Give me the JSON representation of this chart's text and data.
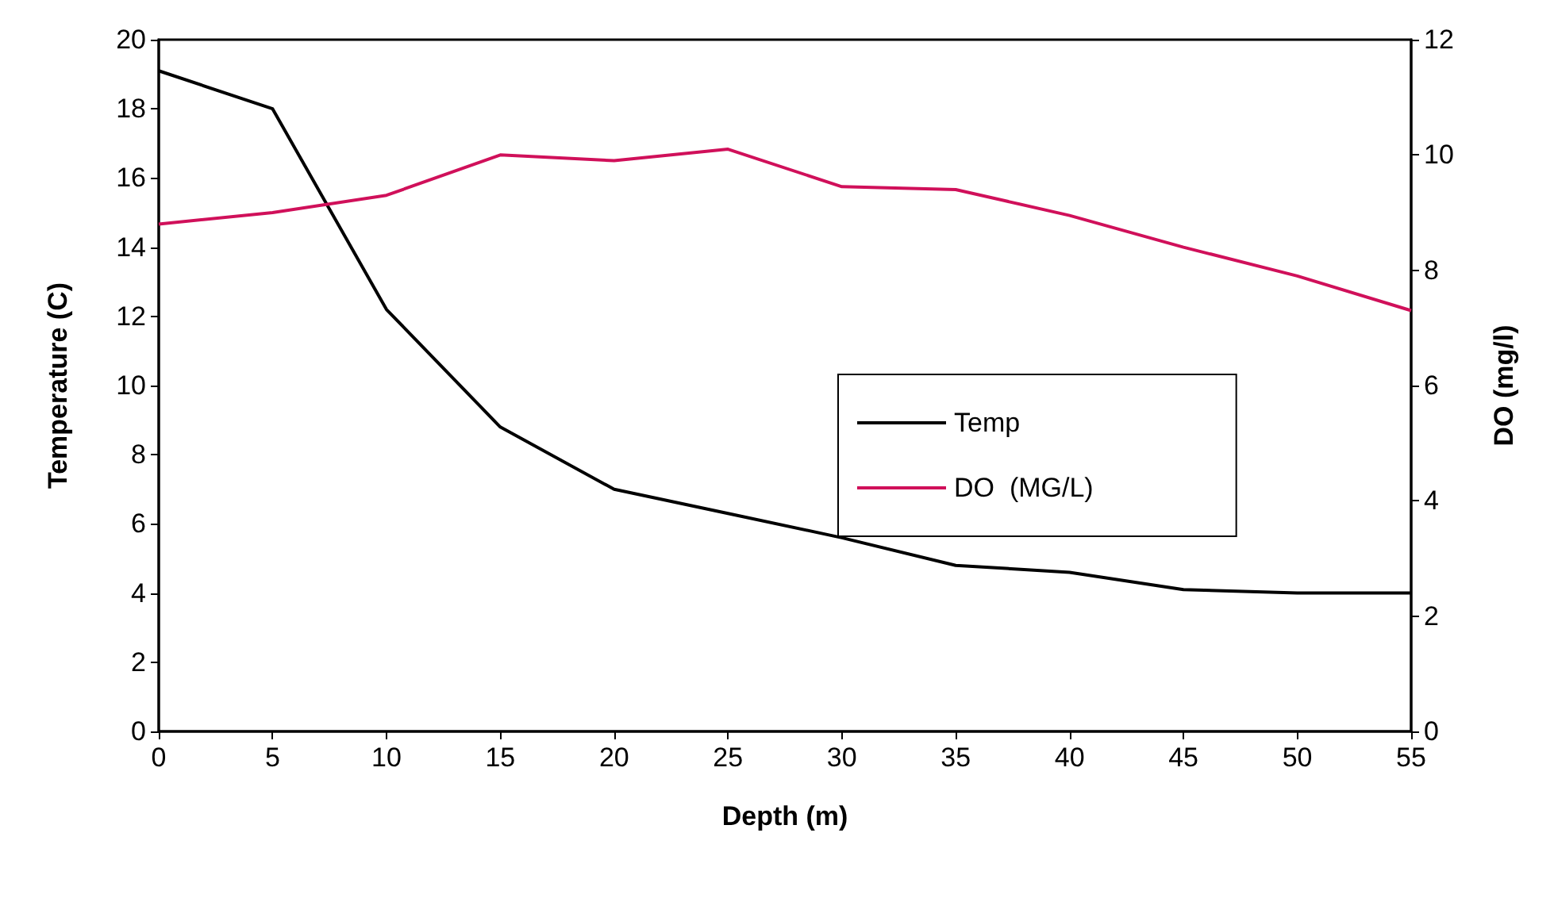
{
  "chart_data": {
    "type": "line",
    "xlabel": "Depth (m)",
    "ylabel": "Temperature (C)",
    "y2label": "DO (mg/l)",
    "x": [
      0,
      5,
      10,
      15,
      20,
      25,
      30,
      35,
      40,
      45,
      50,
      55
    ],
    "series": [
      {
        "name": "Temp",
        "color": "#000000",
        "values": [
          19.1,
          18.0,
          12.2,
          8.8,
          7.0,
          6.3,
          5.6,
          4.8,
          4.6,
          4.1,
          4.0,
          4.0
        ]
      },
      {
        "name": "DO  (MG/L)",
        "color": "#d0105a",
        "axis": "y2",
        "values": [
          8.8,
          9.0,
          9.3,
          10.0,
          9.9,
          10.1,
          9.45,
          9.4,
          8.95,
          8.4,
          7.9,
          7.3
        ]
      }
    ],
    "xlim": [
      0,
      55
    ],
    "xticks": [
      0,
      5,
      10,
      15,
      20,
      25,
      30,
      35,
      40,
      45,
      50,
      55
    ],
    "ylim": [
      0,
      20
    ],
    "yticks": [
      0,
      2,
      4,
      6,
      8,
      10,
      12,
      14,
      16,
      18,
      20
    ],
    "y2lim": [
      0,
      12
    ],
    "y2ticks": [
      0,
      2,
      4,
      6,
      8,
      10,
      12
    ],
    "grid": false,
    "legend": "right",
    "marker": "none",
    "line_style": "solid"
  }
}
